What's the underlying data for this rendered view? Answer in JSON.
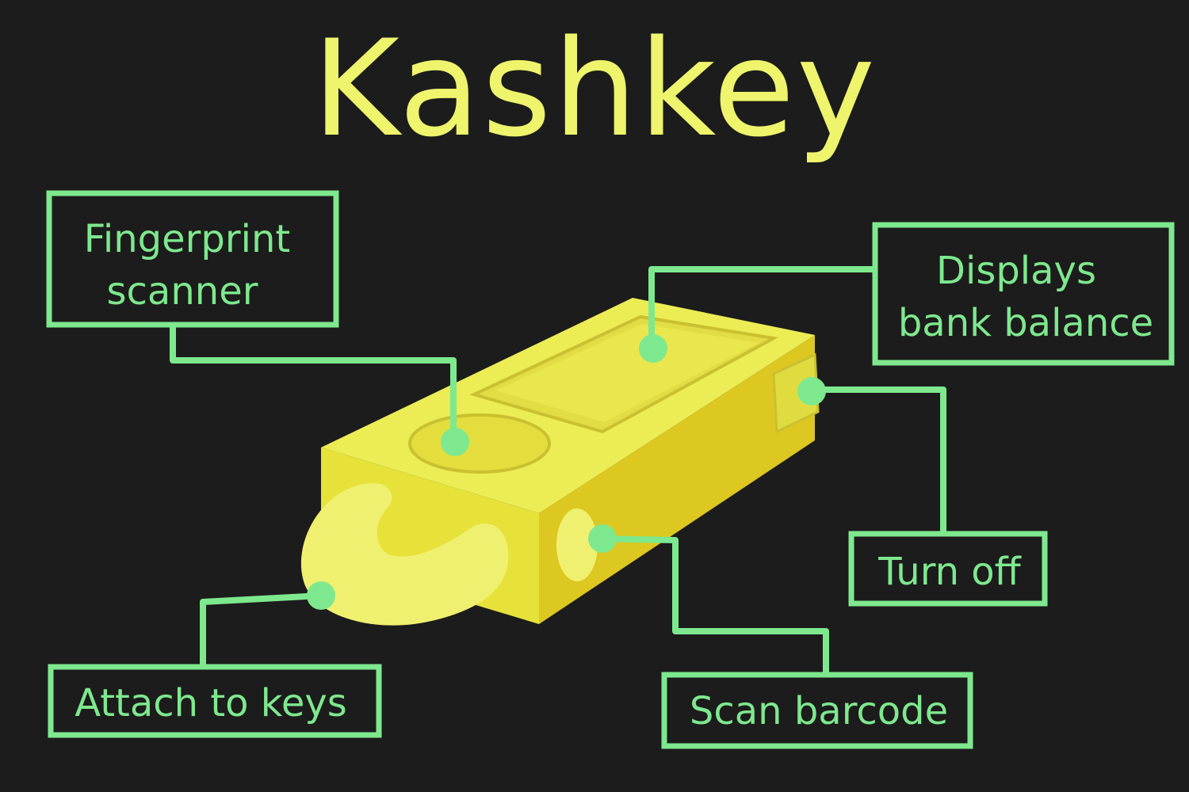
{
  "title": "Kashkey",
  "labels": {
    "fingerprint": [
      "Fingerprint",
      "scanner"
    ],
    "display": [
      "Displays",
      "bank balance"
    ],
    "turn_off": "Turn off",
    "attach": "Attach to keys",
    "scan": "Scan barcode"
  },
  "colors": {
    "background": "#1c1c1c",
    "title": "#eef46c",
    "label": "#7ee88e",
    "device": "#e8e84a"
  }
}
